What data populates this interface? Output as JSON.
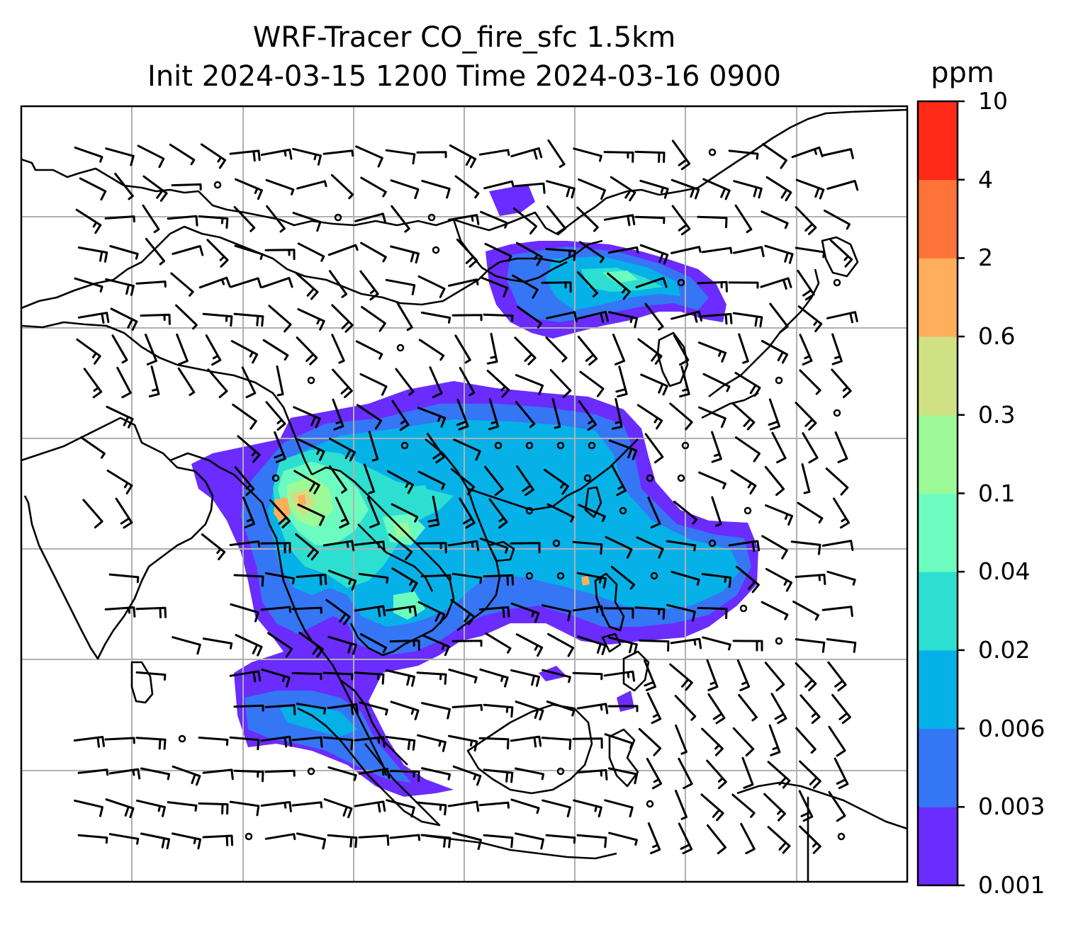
{
  "title": {
    "line1": "WRF-Tracer CO_fire_sfc 1.5km",
    "line2": "Init 2024-03-15 1200 Time 2024-03-16 0900"
  },
  "colorbar": {
    "unit": "ppm",
    "levels": [
      "0.001",
      "0.003",
      "0.006",
      "0.02",
      "0.04",
      "0.1",
      "0.3",
      "0.6",
      "2",
      "4",
      "10"
    ],
    "colors": [
      "#6a2cff",
      "#3576f4",
      "#06b1e8",
      "#2ddfd0",
      "#6cfcbf",
      "#9cfa98",
      "#d0e184",
      "#ffae5c",
      "#ff7339",
      "#ff2a17"
    ]
  },
  "map": {
    "coastline_color": "#000000",
    "grid_color": "#b0b0b0",
    "barb_color": "#000000"
  }
}
